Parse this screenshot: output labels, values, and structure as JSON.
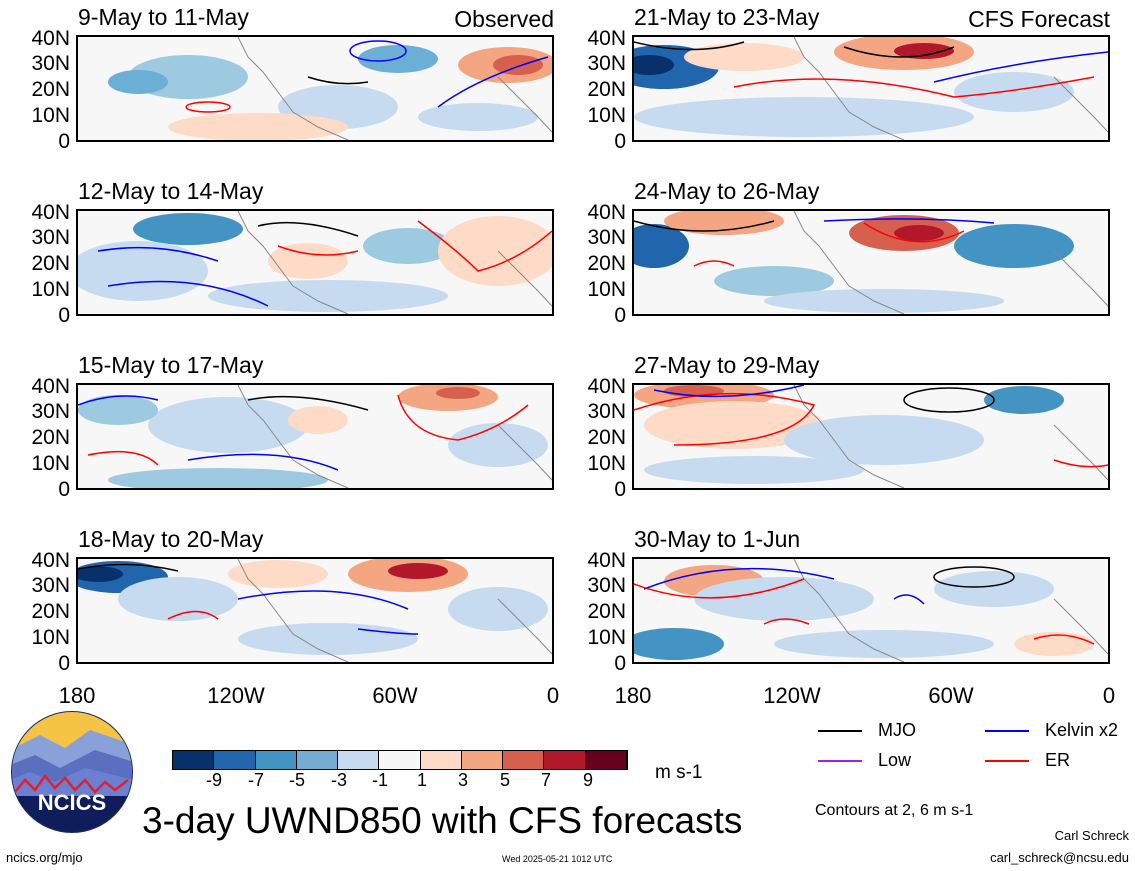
{
  "panels": [
    {
      "title": "9-May to 11-May",
      "source": "Observed",
      "period": "observed"
    },
    {
      "title": "12-May to 14-May",
      "source": "",
      "period": "observed"
    },
    {
      "title": "15-May to 17-May",
      "source": "",
      "period": "observed"
    },
    {
      "title": "18-May to 20-May",
      "source": "",
      "period": "observed"
    },
    {
      "title": "21-May to 23-May",
      "source": "CFS Forecast",
      "period": "forecast"
    },
    {
      "title": "24-May to 26-May",
      "source": "",
      "period": "forecast"
    },
    {
      "title": "27-May to 29-May",
      "source": "",
      "period": "forecast"
    },
    {
      "title": "30-May to 1-Jun",
      "source": "",
      "period": "forecast"
    }
  ],
  "axes": {
    "latitude_ticks": [
      "40N",
      "30N",
      "20N",
      "10N",
      "0"
    ],
    "longitude_ticks": [
      "180",
      "120W",
      "60W",
      "0"
    ]
  },
  "colorbar": {
    "ticks": [
      "-9",
      "-7",
      "-5",
      "-3",
      "-1",
      "1",
      "3",
      "5",
      "7",
      "9"
    ],
    "colors": [
      "#08306b",
      "#2166ac",
      "#4393c3",
      "#74add1",
      "#c6dbef",
      "#f7f7f7",
      "#fddbc7",
      "#f4a582",
      "#d6604d",
      "#b2182b",
      "#67001f"
    ],
    "units": "m s-1"
  },
  "legend": {
    "items": [
      {
        "label": "MJO",
        "color": "#000000"
      },
      {
        "label": "Kelvin x2",
        "color": "#0000ff"
      },
      {
        "label": "Low",
        "color": "#a020f0"
      },
      {
        "label": "ER",
        "color": "#ff0000"
      }
    ],
    "contour_note": "Contours at 2, 6 m s-1"
  },
  "logo": {
    "text": "NCICS"
  },
  "main_title": "3-day UWND850 with CFS forecasts",
  "footer": {
    "url": "ncics.org/mjo",
    "timestamp": "Wed 2025-05-21 1012 UTC",
    "author": "Carl Schreck",
    "email": "carl_schreck@ncsu.edu"
  }
}
